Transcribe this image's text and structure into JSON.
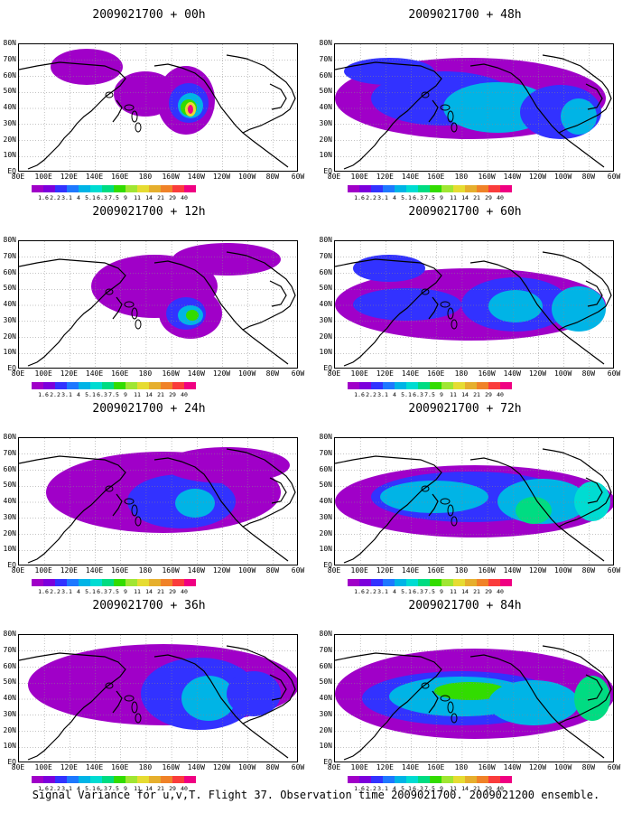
{
  "caption": "Signal Variance for u,v,T. Flight 37. Observation time 2009021700. 2009021200 ensemble.",
  "lat_labels": [
    "80N",
    "70N",
    "60N",
    "50N",
    "40N",
    "30N",
    "20N",
    "10N",
    "EQ"
  ],
  "lon_labels": [
    "80E",
    "100E",
    "120E",
    "140E",
    "160E",
    "180",
    "160W",
    "140W",
    "120W",
    "100W",
    "80W",
    "60W"
  ],
  "colorbar": {
    "labels": [
      "1.6",
      "2.2",
      "3.1",
      "4",
      "5.1",
      "6.3",
      "7.5",
      "9",
      "11",
      "14",
      "21",
      "29",
      "40"
    ],
    "colors": [
      "#a000c8",
      "#7c00dc",
      "#3232ff",
      "#1e78ff",
      "#00b4e6",
      "#00dcd2",
      "#00dc82",
      "#32dc00",
      "#a0e632",
      "#e6dc32",
      "#e6af2d",
      "#f08228",
      "#fa3c3c",
      "#f00082"
    ]
  },
  "panels": [
    {
      "title": "2009021700 + 00h",
      "color_ramp": [
        "#a000c8",
        "#3232ff",
        "#00b4e6",
        "#32dc00",
        "#e6dc32",
        "#f00082"
      ]
    },
    {
      "title": "2009021700 + 48h",
      "color_ramp": [
        "#a000c8",
        "#3232ff",
        "#00b4e6",
        "#00dcd2"
      ]
    },
    {
      "title": "2009021700 + 12h",
      "color_ramp": [
        "#a000c8",
        "#3232ff",
        "#00b4e6",
        "#32dc00"
      ]
    },
    {
      "title": "2009021700 + 60h",
      "color_ramp": [
        "#a000c8",
        "#3232ff",
        "#00b4e6",
        "#00dcd2"
      ]
    },
    {
      "title": "2009021700 + 24h",
      "color_ramp": [
        "#a000c8",
        "#3232ff",
        "#00b4e6"
      ]
    },
    {
      "title": "2009021700 + 72h",
      "color_ramp": [
        "#a000c8",
        "#3232ff",
        "#00b4e6",
        "#00dcd2",
        "#00dc82"
      ]
    },
    {
      "title": "2009021700 + 36h",
      "color_ramp": [
        "#a000c8",
        "#3232ff",
        "#00b4e6"
      ]
    },
    {
      "title": "2009021700 + 84h",
      "color_ramp": [
        "#a000c8",
        "#3232ff",
        "#00b4e6",
        "#00dc82",
        "#32dc00"
      ]
    }
  ],
  "chart_data": {
    "type": "heatmap",
    "title": "Signal Variance for u,v,T. Flight 37. Observation time 2009021700. 2009021200 ensemble.",
    "x_range": [
      "80E",
      "60W"
    ],
    "y_range": [
      "EQ",
      "80N"
    ],
    "grid": true,
    "contour_levels": [
      1.6,
      2.2,
      3.1,
      4,
      5.1,
      6.3,
      7.5,
      9,
      11,
      14,
      21,
      29,
      40
    ],
    "panels": [
      {
        "title": "2009021700 + 00h",
        "max_level_band": "29-40"
      },
      {
        "title": "2009021700 + 12h",
        "max_level_band": "7.5-9"
      },
      {
        "title": "2009021700 + 24h",
        "max_level_band": "4-5.1"
      },
      {
        "title": "2009021700 + 36h",
        "max_level_band": "4-5.1"
      },
      {
        "title": "2009021700 + 48h",
        "max_level_band": "5.1-6.3"
      },
      {
        "title": "2009021700 + 60h",
        "max_level_band": "5.1-6.3"
      },
      {
        "title": "2009021700 + 72h",
        "max_level_band": "6.3-7.5"
      },
      {
        "title": "2009021700 + 84h",
        "max_level_band": "7.5-9"
      }
    ]
  }
}
